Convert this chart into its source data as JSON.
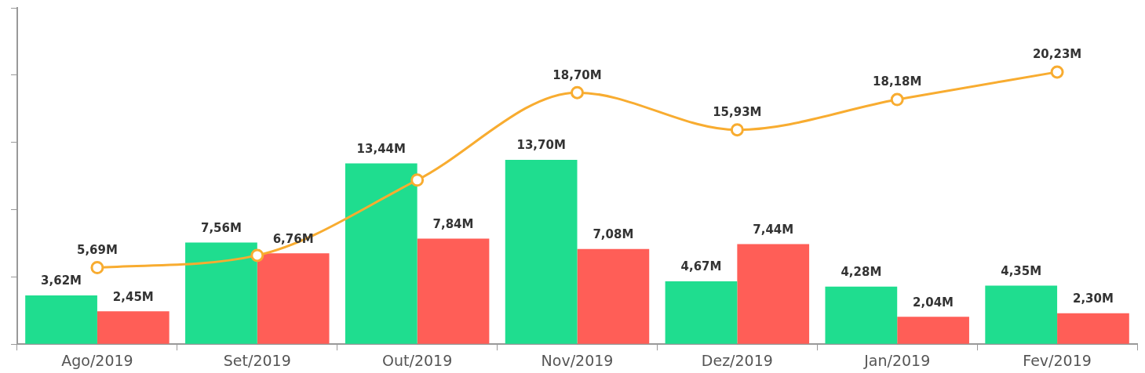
{
  "chart_data": {
    "type": "bar",
    "categories": [
      "Ago/2019",
      "Set/2019",
      "Out/2019",
      "Nov/2019",
      "Dez/2019",
      "Jan/2019",
      "Fev/2019"
    ],
    "series": [
      {
        "color": "#1fdd8f",
        "values": [
          3.62,
          7.56,
          13.44,
          13.7,
          4.67,
          4.28,
          4.35
        ],
        "value_labels": [
          "3,62M",
          "7,56M",
          "13,44M",
          "13,70M",
          "4,67M",
          "4,28M",
          "4,35M"
        ]
      },
      {
        "color": "#ff5e57",
        "values": [
          2.45,
          6.76,
          7.84,
          7.08,
          7.44,
          2.04,
          2.3
        ],
        "value_labels": [
          "2,45M",
          "6,76M",
          "7,84M",
          "7,08M",
          "7,44M",
          "2,04M",
          "2,30M"
        ]
      },
      {
        "type": "line",
        "color": "#f8ac30",
        "values": [
          5.69,
          6.6,
          12.2,
          18.7,
          15.93,
          18.18,
          20.23
        ],
        "value_labels": [
          "5,69M",
          null,
          null,
          "18,70M",
          "15,93M",
          "18,18M",
          "20,23M"
        ],
        "marker": "circle"
      }
    ],
    "ylim": [
      0,
      25
    ],
    "yticks": [
      {
        "value": 0,
        "label": null
      },
      {
        "value": 5,
        "label": null
      },
      {
        "value": 10,
        "label": null
      },
      {
        "value": 15,
        "label": null
      },
      {
        "value": 20,
        "label": null
      },
      {
        "value": 25,
        "label": null
      }
    ],
    "tick_labels": "x",
    "grid": false,
    "legend": false
  }
}
